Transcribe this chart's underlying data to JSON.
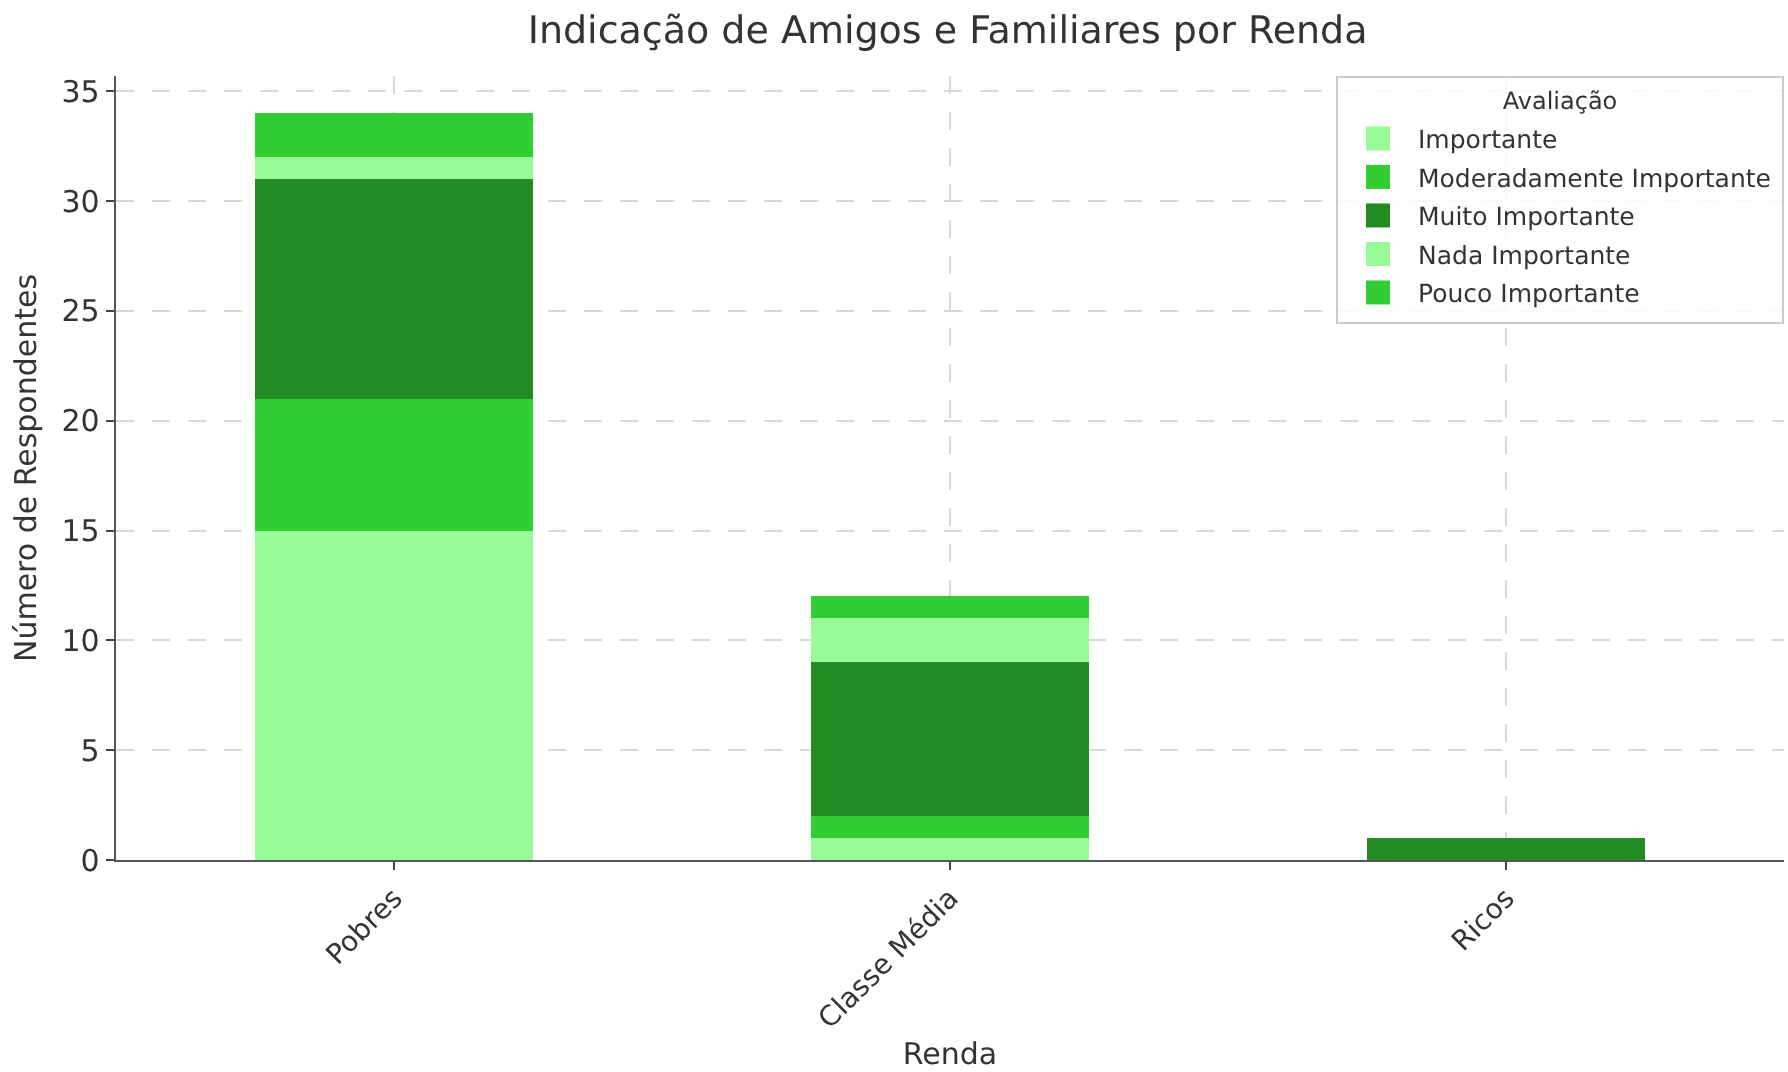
{
  "chart_data": {
    "type": "bar",
    "title": "Indicação de Amigos e Familiares por Renda",
    "xlabel": "Renda",
    "ylabel": "Número de Respondentes",
    "legend_title": "Avaliação",
    "categories": [
      "Pobres",
      "Classe Média",
      "Ricos"
    ],
    "series": [
      {
        "name": "Importante",
        "color": "#98fb98",
        "values": [
          15,
          1,
          0
        ]
      },
      {
        "name": "Moderadamente Importante",
        "color": "#32cd32",
        "values": [
          6,
          1,
          0
        ]
      },
      {
        "name": "Muito Importante",
        "color": "#228b22",
        "values": [
          10,
          7,
          1
        ]
      },
      {
        "name": "Nada Importante",
        "color": "#98fb98",
        "values": [
          1,
          2,
          0
        ]
      },
      {
        "name": "Pouco Importante",
        "color": "#32cd32",
        "values": [
          2,
          1,
          0
        ]
      }
    ],
    "stacked": true,
    "ylim": [
      0,
      35.7
    ],
    "yticks": [
      0,
      5,
      10,
      15,
      20,
      25,
      30,
      35
    ],
    "grid": true,
    "legend": "top right"
  }
}
